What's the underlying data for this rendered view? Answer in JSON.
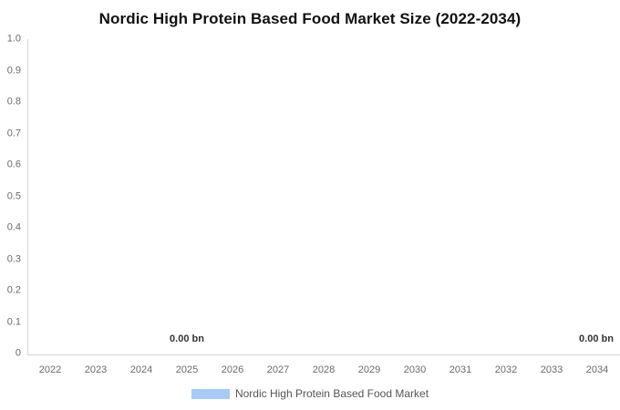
{
  "chart": {
    "title": "Nordic High Protein Based Food Market Size (2022-2034)"
  },
  "chart_data": {
    "type": "bar",
    "title": "Nordic High Protein Based Food Market Size (2022-2034)",
    "categories": [
      "2022",
      "2023",
      "2024",
      "2025",
      "2026",
      "2027",
      "2028",
      "2029",
      "2030",
      "2031",
      "2032",
      "2033",
      "2034"
    ],
    "series": [
      {
        "name": "Nordic High Protein Based Food Market",
        "color": "#a8caf8",
        "values": [
          0,
          0,
          0,
          0,
          0,
          0,
          0,
          0,
          0,
          0,
          0,
          0,
          0
        ]
      }
    ],
    "xlabel": "",
    "ylabel": "",
    "ylim": [
      0,
      1.0
    ],
    "yticks": [
      {
        "label": "1.0",
        "value": 1.0
      },
      {
        "label": "0.9",
        "value": 0.9
      },
      {
        "label": "0.8",
        "value": 0.8
      },
      {
        "label": "0.7",
        "value": 0.7
      },
      {
        "label": "0.6",
        "value": 0.6
      },
      {
        "label": "0.5",
        "value": 0.5
      },
      {
        "label": "0.4",
        "value": 0.4
      },
      {
        "label": "0.3",
        "value": 0.3
      },
      {
        "label": "0.2",
        "value": 0.2
      },
      {
        "label": "0.1",
        "value": 0.1
      },
      {
        "label": "0",
        "value": 0
      }
    ],
    "grid": false,
    "legend_position": "bottom",
    "annotations": [
      {
        "category": "2025",
        "text": "0.00 bn"
      },
      {
        "category": "2034",
        "text": "0.00 bn"
      }
    ]
  },
  "colors": {
    "background": "#ffffff",
    "axis_line": "#d4d4d4",
    "tick_text": "#6b6b6b",
    "data_label_text": "#333333",
    "title_text": "#111111",
    "legend_text": "#555555",
    "series": "#a8caf8"
  }
}
